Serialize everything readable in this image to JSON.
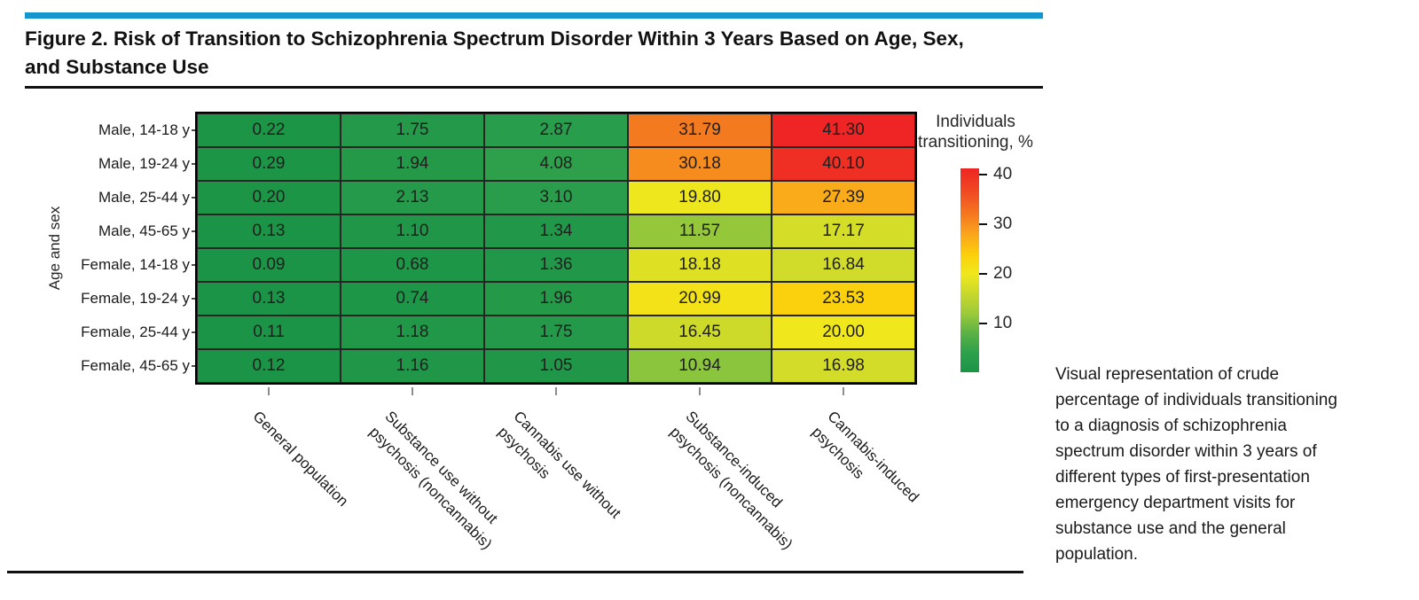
{
  "figure": {
    "title_line1": "Figure 2. Risk of Transition to Schizophrenia Spectrum Disorder Within 3 Years Based on Age, Sex,",
    "title_line2": "and Substance Use",
    "accent_color": "#1495cd",
    "caption": "Visual representation of crude percentage of individuals transitioning to a diagnosis of schizophrenia spectrum disorder within 3 years of different types of first-presentation emergency department visits for substance use and the general population."
  },
  "chart_data": {
    "type": "heatmap",
    "title": "Figure 2. Risk of Transition to Schizophrenia Spectrum Disorder Within 3 Years Based on Age, Sex, and Substance Use",
    "ylabel": "Age and sex",
    "rows": [
      "Male, 14-18 y",
      "Male, 19-24 y",
      "Male, 25-44 y",
      "Male, 45-65 y",
      "Female, 14-18 y",
      "Female, 19-24 y",
      "Female, 25-44 y",
      "Female, 45-65 y"
    ],
    "columns": [
      "General population",
      "Substance use without psychosis (noncannabis)",
      "Cannabis use without psychosis",
      "Substance-induced psychosis (noncannabis)",
      "Cannabis-induced psychosis"
    ],
    "columns_display_lines": [
      [
        "General population"
      ],
      [
        "Substance use without",
        "psychosis (noncannabis)"
      ],
      [
        "Cannabis use without",
        "psychosis"
      ],
      [
        "Substance-induced",
        "psychosis (noncannabis)"
      ],
      [
        "Cannabis-induced",
        "psychosis"
      ]
    ],
    "values": [
      [
        0.22,
        1.75,
        2.87,
        31.79,
        41.3
      ],
      [
        0.29,
        1.94,
        4.08,
        30.18,
        40.1
      ],
      [
        0.2,
        2.13,
        3.1,
        19.8,
        27.39
      ],
      [
        0.13,
        1.1,
        1.34,
        11.57,
        17.17
      ],
      [
        0.09,
        0.68,
        1.36,
        18.18,
        16.84
      ],
      [
        0.13,
        0.74,
        1.96,
        20.99,
        23.53
      ],
      [
        0.11,
        1.18,
        1.75,
        16.45,
        20.0
      ],
      [
        0.12,
        1.16,
        1.05,
        10.94,
        16.98
      ]
    ],
    "colorbar": {
      "label_line1": "Individuals",
      "label_line2": "transitioning, %",
      "ticks": [
        40,
        30,
        20,
        10
      ],
      "vmin": 0.09,
      "vmax": 41.3,
      "gradient_stops": [
        [
          0,
          "#1b9447"
        ],
        [
          4,
          "#2da04c"
        ],
        [
          8,
          "#5bb244"
        ],
        [
          12,
          "#9cca3a"
        ],
        [
          16,
          "#c9d82c"
        ],
        [
          20,
          "#f0e81c"
        ],
        [
          24,
          "#fcce0b"
        ],
        [
          28,
          "#faa51c"
        ],
        [
          32,
          "#f4781f"
        ],
        [
          36,
          "#f14f22"
        ],
        [
          41.3,
          "#ee2524"
        ]
      ]
    },
    "legend_position": "right",
    "grid": "cell-borders"
  }
}
